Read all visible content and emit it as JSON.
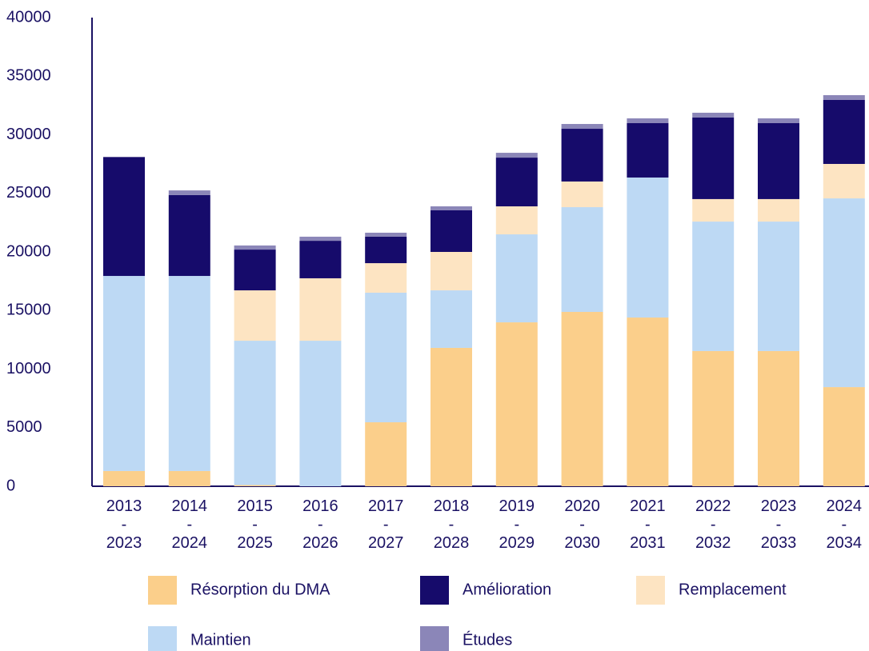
{
  "chart_data": {
    "type": "stacked_bar",
    "categories": [
      "2013\n-\n2023",
      "2014\n-\n2024",
      "2015\n-\n2025",
      "2016\n-\n2026",
      "2017\n-\n2027",
      "2018\n-\n2028",
      "2019\n-\n2029",
      "2020\n-\n2030",
      "2021\n-\n2031",
      "2022\n-\n2032",
      "2023\n-\n2033",
      "2024\n-\n2034"
    ],
    "series": [
      {
        "name": "Résorption du DMA",
        "color": "#fbcf8b",
        "values": [
          1300,
          1300,
          100,
          0,
          5460,
          11810,
          13990,
          14880,
          14400,
          11540,
          11540,
          8460
        ]
      },
      {
        "name": "Maintien",
        "color": "#bdd9f4",
        "values": [
          16650,
          16650,
          12320,
          12420,
          11060,
          4910,
          7510,
          8940,
          11950,
          11050,
          11050,
          16110
        ]
      },
      {
        "name": "Remplacement",
        "color": "#fde4c2",
        "values": [
          0,
          0,
          4300,
          5330,
          2520,
          3280,
          2390,
          2190,
          0,
          1920,
          1920,
          2940
        ]
      },
      {
        "name": "Amélioration",
        "color": "#160b6b",
        "values": [
          10150,
          6900,
          3480,
          3200,
          2260,
          3550,
          4160,
          4500,
          4640,
          6960,
          6480,
          5460
        ]
      },
      {
        "name": "Études",
        "color": "#8b86b8",
        "values": [
          0,
          400,
          350,
          350,
          340,
          340,
          410,
          410,
          410,
          410,
          410,
          410
        ]
      }
    ],
    "ylim": [
      0,
      40000
    ],
    "yticks": [
      0,
      5000,
      10000,
      15000,
      20000,
      25000,
      30000,
      35000,
      40000
    ],
    "grid": false
  }
}
